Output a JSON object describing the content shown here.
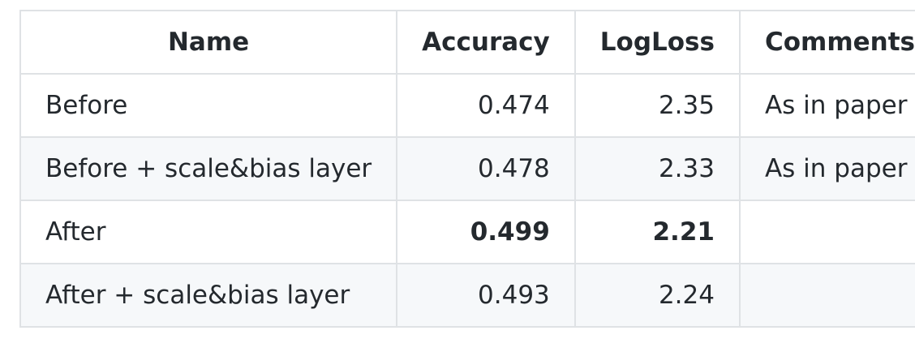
{
  "table": {
    "headers": {
      "name": "Name",
      "accuracy": "Accuracy",
      "logloss": "LogLoss",
      "comments": "Comments"
    },
    "rows": [
      {
        "name": "Before",
        "accuracy": "0.474",
        "logloss": "2.35",
        "comments": "As in paper",
        "bold": false
      },
      {
        "name": "Before + scale&bias layer",
        "accuracy": "0.478",
        "logloss": "2.33",
        "comments": "As in paper",
        "bold": false
      },
      {
        "name": "After",
        "accuracy": "0.499",
        "logloss": "2.21",
        "comments": "",
        "bold": true
      },
      {
        "name": "After + scale&bias layer",
        "accuracy": "0.493",
        "logloss": "2.24",
        "comments": "",
        "bold": false
      }
    ]
  }
}
